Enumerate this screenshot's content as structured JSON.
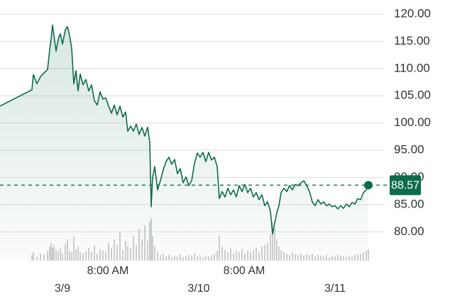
{
  "chart_data": {
    "type": "area",
    "color": "#0d6b4e",
    "fill": "#0d6b4e",
    "volume_color": "#d0d0d0",
    "x": [
      -11,
      -5.375,
      -5.125,
      -4.5,
      -3.875,
      -3.25,
      -2.625,
      -2.25,
      -2,
      -1.75,
      -1.5,
      -1.125,
      -0.75,
      -0.375,
      0,
      0.5,
      0.875,
      1.25,
      1.625,
      2,
      2.375,
      2.75,
      3.125,
      3.625,
      4.125,
      4.625,
      5.125,
      5.625,
      6.125,
      6.625,
      7.125,
      7.625,
      8.125,
      8.625,
      9.125,
      9.625,
      10.125,
      10.625,
      11.125,
      11.5,
      12,
      12.5,
      13,
      13.5,
      14,
      14.5,
      15,
      15.375,
      15.625,
      15.875,
      16.25,
      16.75,
      17.25,
      17.75,
      18.25,
      18.75,
      19.25,
      19.75,
      20.25,
      20.75,
      21.25,
      21.75,
      22.25,
      22.75,
      23.25,
      23.75,
      24.25,
      24.75,
      25.25,
      25.75,
      26.25,
      26.75,
      27.25,
      27.625,
      28.125,
      28.625,
      29.125,
      29.625,
      30.125,
      30.625,
      31.125,
      31.625,
      32.125,
      32.625,
      33.125,
      33.625,
      34.125,
      34.625,
      35.125,
      35.625,
      36.125,
      36.625,
      37,
      37.375,
      37.75,
      38.125,
      38.5,
      39,
      39.5,
      40,
      40.5,
      41,
      41.5,
      42,
      42.5,
      43,
      43.5,
      44,
      44.5,
      45,
      45.5,
      46,
      46.5,
      47,
      47.5,
      48,
      48.5,
      49,
      49.5,
      50,
      50.5,
      51,
      51.5,
      52,
      52.5,
      53,
      53.5,
      53.875
    ],
    "values": [
      103.1,
      106.1,
      108.9,
      107.2,
      108.5,
      109.2,
      109.8,
      113.5,
      115.4,
      118.0,
      116.1,
      113.2,
      115.4,
      116.4,
      114.5,
      117.1,
      117.7,
      116.1,
      113.7,
      107.2,
      109.6,
      105.9,
      109.0,
      107.0,
      108.0,
      105.9,
      107.0,
      104.1,
      103.3,
      105.7,
      104.4,
      104.6,
      103.1,
      101.8,
      103.3,
      101.5,
      103.1,
      101.1,
      102.0,
      98.5,
      99.4,
      98.5,
      99.8,
      97.9,
      99.2,
      97.6,
      99.2,
      96.5,
      84.6,
      90.0,
      92.0,
      87.7,
      89.4,
      91.4,
      92.9,
      93.7,
      92.4,
      93.3,
      90.7,
      91.6,
      89.0,
      90.1,
      88.5,
      89.4,
      92.6,
      94.5,
      93.7,
      94.6,
      92.9,
      94.6,
      93.2,
      93.7,
      92.0,
      86.1,
      87.4,
      86.4,
      88.0,
      86.8,
      87.7,
      86.4,
      88.5,
      87.4,
      88.7,
      87.2,
      88.0,
      86.4,
      87.2,
      85.9,
      86.8,
      84.8,
      85.5,
      83.8,
      79.6,
      81.6,
      83.5,
      84.8,
      87.2,
      88.0,
      87.4,
      88.5,
      87.7,
      88.7,
      88.5,
      89.0,
      89.4,
      88.5,
      87.4,
      85.5,
      84.8,
      85.9,
      85.1,
      85.5,
      84.8,
      85.1,
      84.6,
      84.8,
      84.2,
      84.8,
      84.3,
      85.1,
      84.6,
      85.4,
      85.1,
      86.1,
      85.9,
      87.2,
      87.7,
      88.57
    ],
    "volume": [
      null,
      8,
      12,
      6,
      10,
      9,
      14,
      20,
      25,
      18,
      22,
      15,
      12,
      18,
      10,
      24,
      30,
      14,
      12,
      35,
      16,
      20,
      12,
      10,
      14,
      18,
      12,
      22,
      10,
      16,
      14,
      12,
      25,
      18,
      30,
      22,
      40,
      15,
      28,
      20,
      18,
      35,
      22,
      45,
      30,
      50,
      28,
      55,
      60,
      35,
      20,
      12,
      8,
      10,
      6,
      8,
      5,
      7,
      6,
      9,
      5,
      6,
      8,
      7,
      10,
      6,
      8,
      5,
      7,
      6,
      8,
      10,
      14,
      35,
      20,
      15,
      12,
      18,
      10,
      14,
      12,
      16,
      10,
      14,
      12,
      15,
      18,
      12,
      20,
      22,
      25,
      38,
      55,
      45,
      30,
      20,
      15,
      12,
      10,
      8,
      12,
      9,
      8,
      10,
      7,
      9,
      8,
      10,
      6,
      8,
      7,
      6,
      8,
      5,
      7,
      6,
      8,
      7,
      6,
      5,
      7,
      6,
      8,
      9,
      10,
      12,
      14,
      16
    ],
    "xlim": [
      -11,
      56.5
    ],
    "ylim": [
      74.7,
      122.6
    ],
    "xticks": [
      {
        "value": 8,
        "label": "8:00 AM"
      },
      {
        "value": 32,
        "label": "8:00 AM"
      }
    ],
    "date_ticks": [
      {
        "value": 0,
        "label": "3/9"
      },
      {
        "value": 24,
        "label": "3/10"
      },
      {
        "value": 48,
        "label": "3/11"
      }
    ],
    "yticks": [
      {
        "value": 80,
        "label": "80.00"
      },
      {
        "value": 85,
        "label": "85.00"
      },
      {
        "value": 90,
        "label": "90.00"
      },
      {
        "value": 95,
        "label": "95.00"
      },
      {
        "value": 100,
        "label": "100.00"
      },
      {
        "value": 105,
        "label": "105.00"
      },
      {
        "value": 110,
        "label": "110.00"
      },
      {
        "value": 115,
        "label": "115.00"
      },
      {
        "value": 120,
        "label": "120.00"
      }
    ],
    "grid": true
  }
}
